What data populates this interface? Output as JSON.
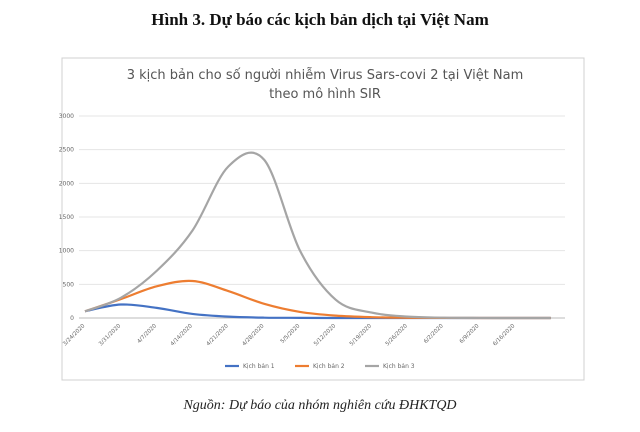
{
  "heading": "Hình 3. Dự báo các kịch bản dịch tại Việt Nam",
  "caption": "Nguồn: Dự báo của nhóm nghiên cứu ĐHKTQD",
  "chart_data": {
    "type": "line",
    "title": "3 kịch bản cho số người nhiễm Virus Sars-covi 2 tại Việt Nam theo mô hình SIR",
    "x": [
      "3/24/2020",
      "3/31/2020",
      "4/7/2020",
      "4/14/2020",
      "4/21/2020",
      "4/28/2020",
      "5/5/2020",
      "5/12/2020",
      "5/19/2020",
      "5/26/2020",
      "6/2/2020",
      "6/9/2020",
      "6/16/2020",
      null
    ],
    "series": [
      {
        "name": "Kịch bản 1",
        "color": "#4472c4",
        "values": [
          100,
          200,
          150,
          60,
          20,
          5,
          2,
          0,
          0,
          0,
          0,
          0,
          0,
          0
        ]
      },
      {
        "name": "Kịch bản 2",
        "color": "#ed7d31",
        "values": [
          100,
          280,
          470,
          550,
          400,
          210,
          90,
          35,
          12,
          4,
          1,
          0,
          0,
          0
        ]
      },
      {
        "name": "Kịch bản 3",
        "color": "#a5a5a5",
        "values": [
          100,
          300,
          700,
          1300,
          2250,
          2350,
          1000,
          270,
          80,
          20,
          5,
          1,
          0,
          0
        ]
      }
    ],
    "ylim": [
      0,
      3000
    ],
    "yticks": [
      0,
      500,
      1000,
      1500,
      2000,
      2500,
      3000
    ],
    "grid": true,
    "legend": "bottom"
  }
}
